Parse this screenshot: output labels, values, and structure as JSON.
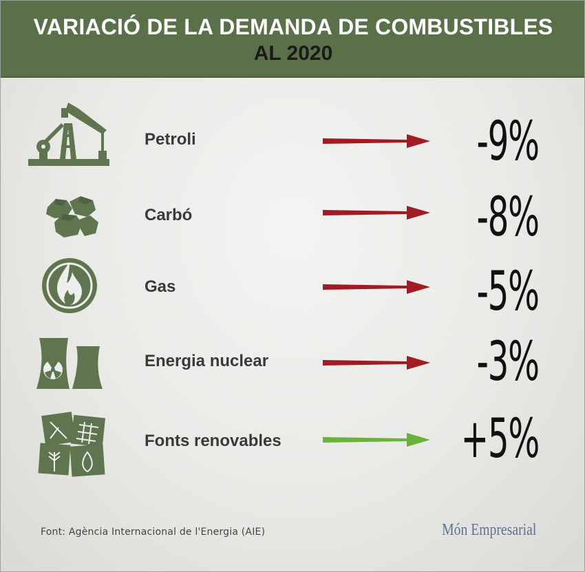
{
  "header": {
    "title_line1": "VARIACIÓ DE LA DEMANDA DE COMBUSTIBLES",
    "title_line2": "AL 2020"
  },
  "colors": {
    "header_bg": "#5a7049",
    "icon_green": "#5e7550",
    "decrease_arrow": "#a11a24",
    "increase_arrow": "#6ab23a"
  },
  "chart_data": {
    "type": "table",
    "categories": [
      "Petroli",
      "Carbó",
      "Gas",
      "Energia nuclear",
      "Fonts renovables"
    ],
    "values": [
      -9,
      -8,
      -5,
      -3,
      5
    ],
    "value_labels": [
      "-9%",
      "-8%",
      "-5%",
      "-3%",
      "+5%"
    ],
    "icons": [
      "oil-pump-icon",
      "coal-icon",
      "gas-flame-icon",
      "nuclear-plant-icon",
      "renewables-icon"
    ],
    "title": "VARIACIÓ DE LA DEMANDA DE COMBUSTIBLES AL 2020"
  },
  "footer": {
    "source": "Font: Agència Internacional de l'Energia (AIE)",
    "brand": "Món Empresarial"
  }
}
